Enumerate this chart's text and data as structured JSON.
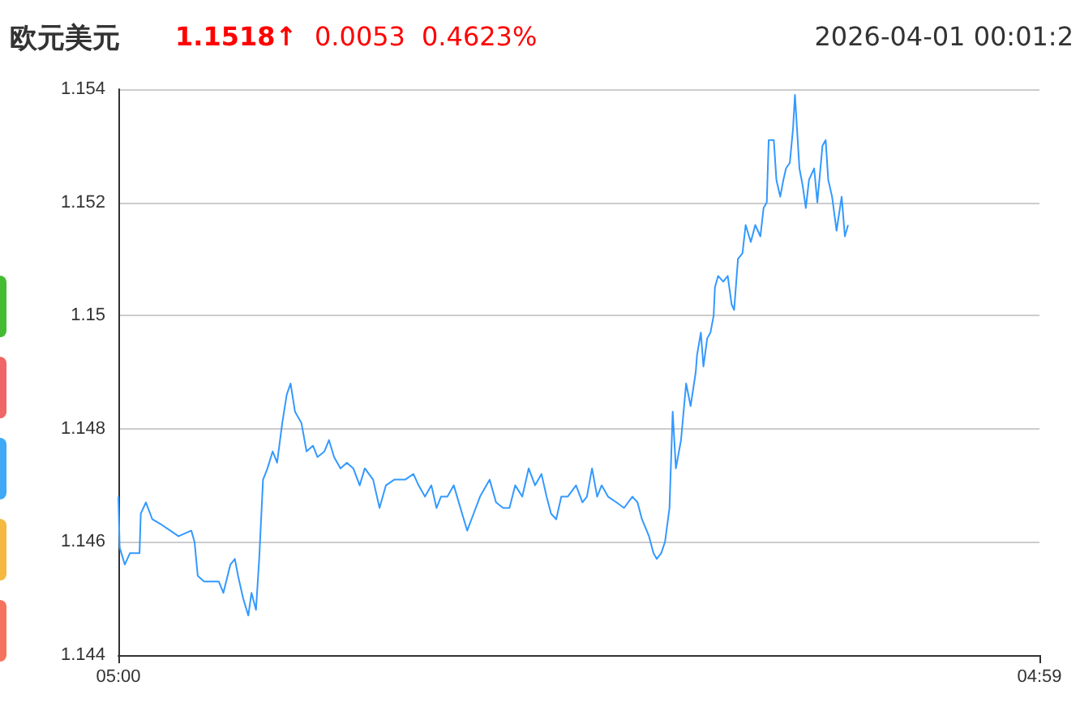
{
  "chart_data": {
    "type": "line",
    "title": "欧元美元",
    "annotations": [
      "1.1518↑",
      "0.0053",
      "0.4623%",
      "2026-04-01 00:01:2"
    ],
    "x": [
      "2026-03-31T05:00",
      "2026-03-31T05:02",
      "2026-03-31T05:10",
      "2026-03-31T05:18",
      "2026-03-31T05:33",
      "2026-03-31T05:35",
      "2026-03-31T05:43",
      "2026-03-31T05:53",
      "2026-03-31T06:08",
      "2026-03-31T06:21",
      "2026-03-31T06:34",
      "2026-03-31T06:54",
      "2026-03-31T06:59",
      "2026-03-31T07:04",
      "2026-03-31T07:14",
      "2026-03-31T07:37",
      "2026-03-31T07:44",
      "2026-03-31T07:55",
      "2026-03-31T08:02",
      "2026-03-31T08:07",
      "2026-03-31T08:15",
      "2026-03-31T08:23",
      "2026-03-31T08:28",
      "2026-03-31T08:35",
      "2026-03-31T08:40",
      "2026-03-31T08:46",
      "2026-03-31T08:53",
      "2026-03-31T09:01",
      "2026-03-31T09:08",
      "2026-03-31T09:16",
      "2026-03-31T09:23",
      "2026-03-31T09:29",
      "2026-03-31T09:36",
      "2026-03-31T09:46",
      "2026-03-31T09:54",
      "2026-03-31T10:04",
      "2026-03-31T10:11",
      "2026-03-31T10:22",
      "2026-03-31T10:29",
      "2026-03-31T10:37",
      "2026-03-31T10:47",
      "2026-03-31T10:57",
      "2026-03-31T11:07",
      "2026-03-31T11:17",
      "2026-03-31T11:25",
      "2026-03-31T11:38",
      "2026-03-31T11:48",
      "2026-03-31T11:58",
      "2026-03-31T12:11",
      "2026-03-31T12:28",
      "2026-03-31T12:41",
      "2026-03-31T12:49",
      "2026-03-31T12:59",
      "2026-03-31T13:09",
      "2026-03-31T13:17",
      "2026-03-31T13:24",
      "2026-03-31T13:34",
      "2026-03-31T13:44",
      "2026-03-31T13:57",
      "2026-03-31T14:05",
      "2026-03-31T14:15",
      "2026-03-31T14:25",
      "2026-03-31T14:35",
      "2026-03-31T14:40",
      "2026-03-31T14:50",
      "2026-03-31T15:01",
      "2026-03-31T15:11",
      "2026-03-31T15:20",
      "2026-03-31T15:31",
      "2026-03-31T15:41",
      "2026-03-31T15:51",
      "2026-03-31T16:01",
      "2026-03-31T16:09",
      "2026-03-31T16:16",
      "2026-03-31T16:24",
      "2026-03-31T16:32",
      "2026-03-31T16:42",
      "2026-03-31T16:55",
      "2026-03-31T17:05",
      "2026-03-31T17:12",
      "2026-03-31T17:20",
      "2026-03-31T17:28",
      "2026-03-31T17:35",
      "2026-03-31T17:45",
      "2026-03-31T17:58",
      "2026-03-31T18:10",
      "2026-03-31T18:23",
      "2026-03-31T18:31",
      "2026-03-31T18:38",
      "2026-03-31T18:49",
      "2026-03-31T18:56",
      "2026-03-31T19:01",
      "2026-03-31T19:08",
      "2026-03-31T19:14",
      "2026-03-31T19:21",
      "2026-03-31T19:26",
      "2026-03-31T19:31",
      "2026-03-31T19:39",
      "2026-03-31T19:47",
      "2026-03-31T19:54",
      "2026-03-31T20:02",
      "2026-03-31T20:04",
      "2026-03-31T20:10",
      "2026-03-31T20:14",
      "2026-03-31T20:20",
      "2026-03-31T20:25",
      "2026-03-31T20:30",
      "2026-03-31T20:32",
      "2026-03-31T20:37",
      "2026-03-31T20:45",
      "2026-03-31T20:52",
      "2026-03-31T20:58",
      "2026-03-31T21:02",
      "2026-03-31T21:08",
      "2026-03-31T21:15",
      "2026-03-31T21:20",
      "2026-03-31T21:28",
      "2026-03-31T21:35",
      "2026-03-31T21:43",
      "2026-03-31T21:48",
      "2026-03-31T21:53",
      "2026-03-31T21:56",
      "2026-03-31T22:04",
      "2026-03-31T22:08",
      "2026-03-31T22:14",
      "2026-03-31T22:19",
      "2026-03-31T22:23",
      "2026-03-31T22:29",
      "2026-03-31T22:34",
      "2026-03-31T22:37",
      "2026-03-31T22:44",
      "2026-03-31T22:49",
      "2026-03-31T22:54",
      "2026-03-31T22:59",
      "2026-03-31T23:07",
      "2026-03-31T23:12",
      "2026-03-31T23:20",
      "2026-03-31T23:25",
      "2026-03-31T23:29",
      "2026-03-31T23:35",
      "2026-03-31T23:42",
      "2026-03-31T23:50",
      "2026-03-31T23:55",
      "2026-04-01T00:00"
    ],
    "series": [
      {
        "color": "#3399ff",
        "values": [
          1.1468,
          1.1459,
          1.1456,
          1.1458,
          1.1458,
          1.1465,
          1.1467,
          1.1464,
          1.1463,
          1.1462,
          1.1461,
          1.1462,
          1.146,
          1.1454,
          1.1453,
          1.1453,
          1.1451,
          1.1456,
          1.1457,
          1.1454,
          1.145,
          1.1447,
          1.1451,
          1.1448,
          1.1457,
          1.1471,
          1.1473,
          1.1476,
          1.1474,
          1.1481,
          1.1486,
          1.1488,
          1.1483,
          1.1481,
          1.1476,
          1.1477,
          1.1475,
          1.1476,
          1.1478,
          1.1475,
          1.1473,
          1.1474,
          1.1473,
          1.147,
          1.1473,
          1.1471,
          1.1466,
          1.147,
          1.1471,
          1.1471,
          1.1472,
          1.147,
          1.1468,
          1.147,
          1.1466,
          1.1468,
          1.1468,
          1.147,
          1.1465,
          1.1462,
          1.1465,
          1.1468,
          1.147,
          1.1471,
          1.1467,
          1.1466,
          1.1466,
          1.147,
          1.1468,
          1.1473,
          1.147,
          1.1472,
          1.1468,
          1.1465,
          1.1464,
          1.1468,
          1.1468,
          1.147,
          1.1467,
          1.1468,
          1.1473,
          1.1468,
          1.147,
          1.1468,
          1.1467,
          1.1466,
          1.1468,
          1.1467,
          1.1464,
          1.1461,
          1.1458,
          1.1457,
          1.1458,
          1.146,
          1.1466,
          1.1483,
          1.1473,
          1.1478,
          1.1488,
          1.1484,
          1.149,
          1.1493,
          1.1497,
          1.1491,
          1.1496,
          1.1497,
          1.15,
          1.1505,
          1.1507,
          1.1506,
          1.1507,
          1.1502,
          1.1501,
          1.151,
          1.1511,
          1.1516,
          1.1513,
          1.1516,
          1.1514,
          1.1519,
          1.152,
          1.1531,
          1.1531,
          1.1524,
          1.1521,
          1.1524,
          1.1526,
          1.1527,
          1.1533,
          1.1539,
          1.1526,
          1.1523,
          1.1519,
          1.1524,
          1.1526,
          1.152,
          1.153,
          1.1531,
          1.1524,
          1.1521,
          1.1515,
          1.1521,
          1.1514,
          1.1516
        ]
      }
    ],
    "xlim": [
      "2026-03-31T05:00",
      "2026-04-01T04:59"
    ],
    "xticks": [
      {
        "value": "2026-03-31T05:00",
        "label": "05:00"
      },
      {
        "value": "2026-04-01T04:59",
        "label": "04:59"
      }
    ],
    "ylim": [
      1.144,
      1.154
    ],
    "yticks": [
      1.144,
      1.146,
      1.148,
      1.15,
      1.152,
      1.154
    ],
    "grid": "y",
    "marker": "none",
    "line_style": "solid"
  }
}
